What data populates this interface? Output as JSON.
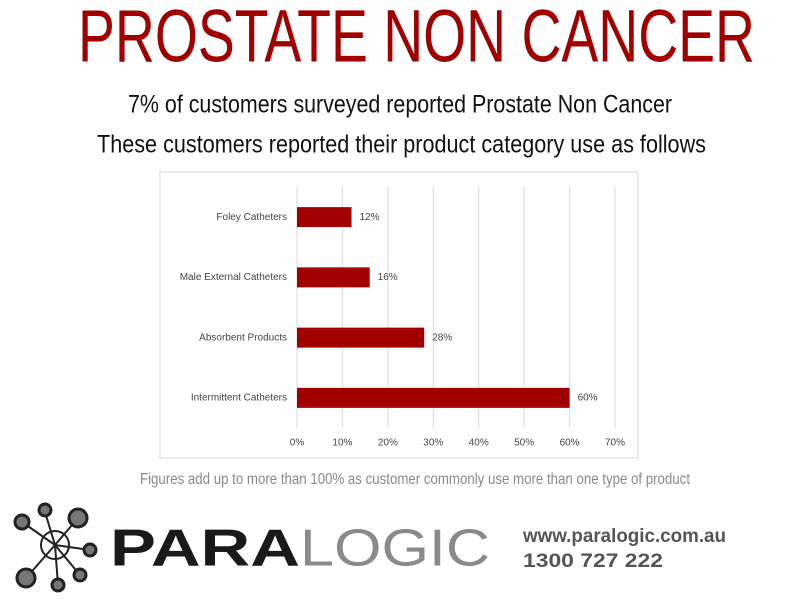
{
  "header": {
    "title": "PROSTATE NON CANCER",
    "subtitle_1": "7% of customers surveyed reported Prostate Non Cancer",
    "subtitle_2": "These customers reported their product category use as follows"
  },
  "chart_data": {
    "type": "bar",
    "orientation": "horizontal",
    "categories": [
      "Foley Catheters",
      "Male External Catheters",
      "Absorbent Products",
      "Intermittent Catheters"
    ],
    "values": [
      12,
      16,
      28,
      60
    ],
    "value_labels": [
      "12%",
      "16%",
      "28%",
      "60%"
    ],
    "color": "#a00000",
    "xlim": [
      0,
      70
    ],
    "xticks": [
      {
        "value": 0,
        "label": "0%"
      },
      {
        "value": 10,
        "label": "10%"
      },
      {
        "value": 20,
        "label": "20%"
      },
      {
        "value": 30,
        "label": "30%"
      },
      {
        "value": 40,
        "label": "40%"
      },
      {
        "value": 50,
        "label": "50%"
      },
      {
        "value": 60,
        "label": "60%"
      },
      {
        "value": 70,
        "label": "70%"
      }
    ],
    "grid": true,
    "note": "Figures add up to more than 100% as customer commonly use more than one type of product"
  },
  "footer": {
    "logo_bold": "PARA",
    "logo_light": "LOGIC",
    "website": "www.paralogic.com.au",
    "phone": "1300 727 222"
  }
}
